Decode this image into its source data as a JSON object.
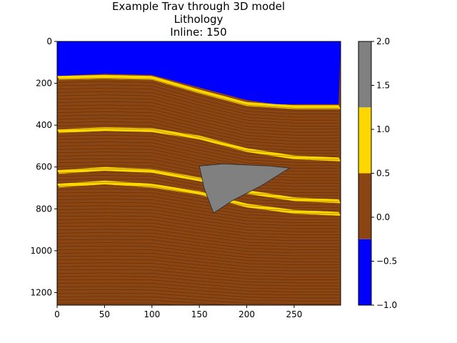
{
  "chart_data": {
    "type": "heatmap",
    "title_lines": [
      "Example Trav through 3D model",
      "Lithology",
      "Inline: 150"
    ],
    "xlim": [
      0,
      299
    ],
    "ylim": [
      1260,
      0
    ],
    "x_ticks": [
      0,
      50,
      100,
      150,
      200,
      250
    ],
    "y_ticks": [
      0,
      200,
      400,
      600,
      800,
      1000,
      1200
    ],
    "grid": false,
    "colorbar": {
      "range": [
        -1.0,
        2.0
      ],
      "ticks": [
        "2.0",
        "1.5",
        "1.0",
        "0.5",
        "0.0",
        "−0.5",
        "−1.0"
      ],
      "classes": [
        {
          "from": -1.0,
          "to": -0.25,
          "color": "#0000ff"
        },
        {
          "from": -0.25,
          "to": 0.5,
          "color": "#8b4513"
        },
        {
          "from": 0.5,
          "to": 1.25,
          "color": "#ffd700"
        },
        {
          "from": 1.25,
          "to": 2.0,
          "color": "#808080"
        }
      ]
    },
    "water_bottom": {
      "x": [
        0,
        50,
        100,
        150,
        200,
        230,
        260,
        299
      ],
      "y": [
        165,
        155,
        160,
        220,
        280,
        300,
        300,
        300
      ]
    },
    "sand_layers": [
      {
        "x": [
          0,
          50,
          100,
          150,
          200,
          250,
          299
        ],
        "y": [
          165,
          160,
          165,
          230,
          290,
          305,
          305
        ]
      },
      {
        "x": [
          0,
          50,
          100,
          150,
          200,
          250,
          299
        ],
        "y": [
          420,
          410,
          415,
          450,
          510,
          545,
          555
        ]
      },
      {
        "x": [
          0,
          50,
          100,
          150,
          200,
          250,
          299
        ],
        "y": [
          615,
          600,
          610,
          650,
          710,
          745,
          755
        ]
      },
      {
        "x": [
          0,
          50,
          100,
          150,
          200,
          250,
          299
        ],
        "y": [
          680,
          665,
          680,
          715,
          775,
          805,
          815
        ]
      }
    ],
    "salt_body": {
      "x": [
        150,
        175,
        200,
        225,
        245,
        215,
        185,
        165,
        155
      ],
      "y": [
        595,
        585,
        590,
        595,
        605,
        690,
        760,
        820,
        700
      ]
    }
  }
}
